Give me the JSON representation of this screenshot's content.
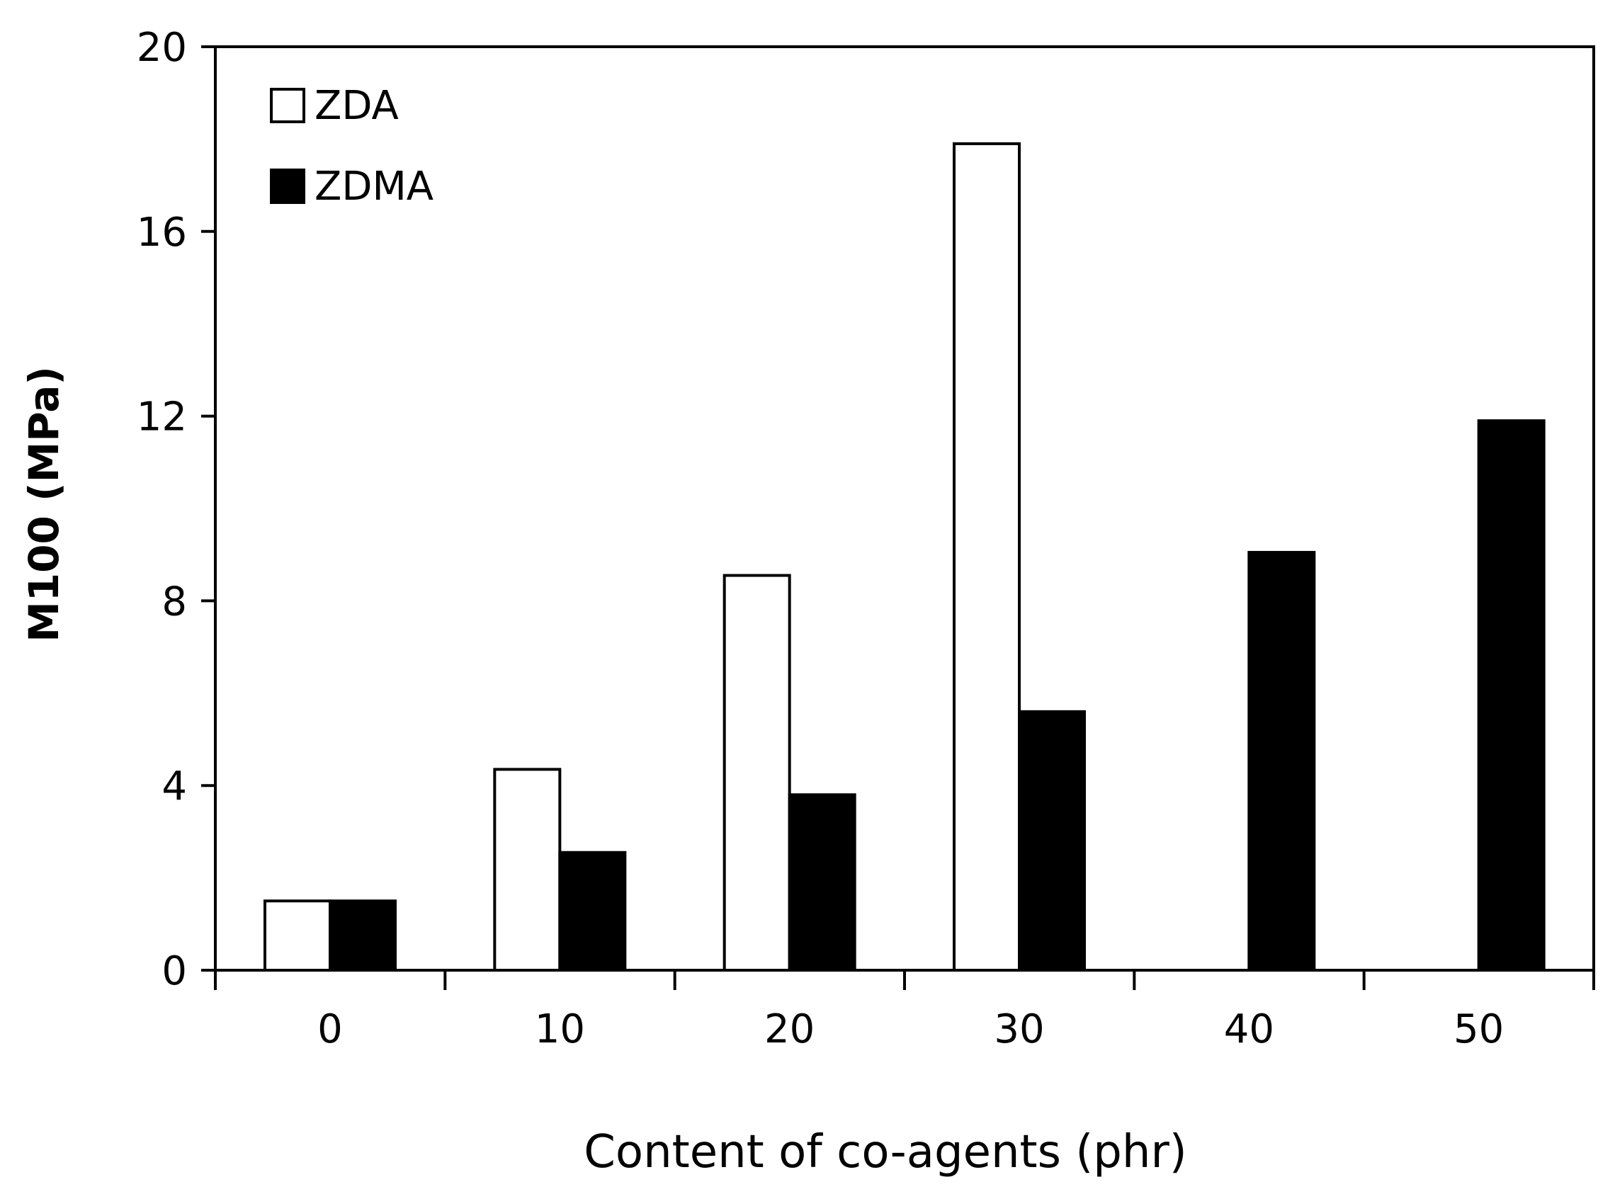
{
  "chart_data": {
    "type": "bar",
    "categories": [
      "0",
      "10",
      "20",
      "30",
      "40",
      "50"
    ],
    "series": [
      {
        "name": "ZDA",
        "values": [
          1.5,
          4.35,
          8.55,
          17.9,
          null,
          null
        ],
        "fill": "#ffffff",
        "stroke": "#000000"
      },
      {
        "name": "ZDMA",
        "values": [
          1.5,
          2.55,
          3.8,
          5.6,
          9.05,
          11.9
        ],
        "fill": "#000000",
        "stroke": "#000000"
      }
    ],
    "title": "",
    "xlabel": "Content of co-agents (phr)",
    "ylabel": "M100 (MPa)",
    "ylim": [
      0,
      20
    ],
    "yticks": [
      0,
      4,
      8,
      12,
      16,
      20
    ],
    "grid": false,
    "legend_position": "top-left"
  }
}
